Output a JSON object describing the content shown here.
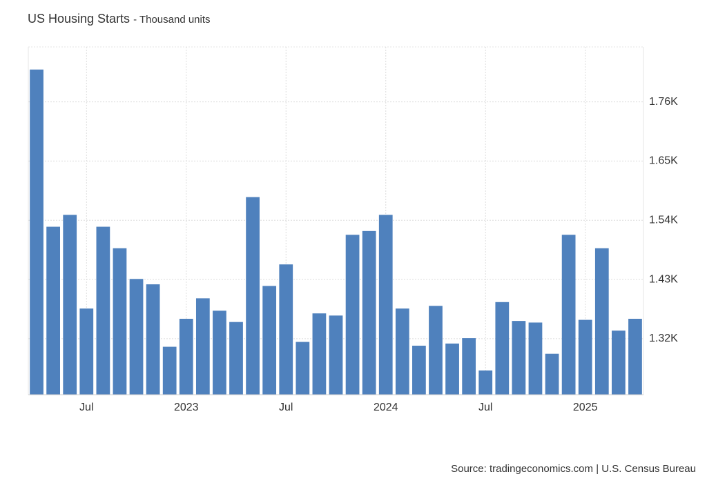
{
  "chart_data": {
    "type": "bar",
    "title": "US Housing Starts",
    "subtitle": "- Thousand units",
    "source": "Source: tradingeconomics.com | U.S. Census Bureau",
    "categories": [
      null,
      null,
      null,
      "Jul",
      null,
      null,
      null,
      null,
      null,
      "2023",
      null,
      null,
      null,
      null,
      null,
      "Jul",
      null,
      null,
      null,
      null,
      null,
      "2024",
      null,
      null,
      null,
      null,
      null,
      "Jul",
      null,
      null,
      null,
      null,
      null,
      "2025",
      null,
      null,
      null
    ],
    "values": [
      1820,
      1528,
      1550,
      1376,
      1528,
      1488,
      1431,
      1421,
      1305,
      1357,
      1395,
      1372,
      1351,
      1583,
      1418,
      1458,
      1314,
      1367,
      1363,
      1513,
      1520,
      1550,
      1376,
      1307,
      1381,
      1311,
      1321,
      1261,
      1388,
      1353,
      1350,
      1292,
      1513,
      1355,
      1488,
      1335,
      1357
    ],
    "color": "#4f81bd",
    "ylim": [
      1216,
      1862
    ],
    "yticks": [
      {
        "value": 1320,
        "label": "1.32K"
      },
      {
        "value": 1430,
        "label": "1.43K"
      },
      {
        "value": 1540,
        "label": "1.54K"
      },
      {
        "value": 1650,
        "label": "1.65K"
      },
      {
        "value": 1760,
        "label": "1.76K"
      }
    ],
    "grid": true
  }
}
